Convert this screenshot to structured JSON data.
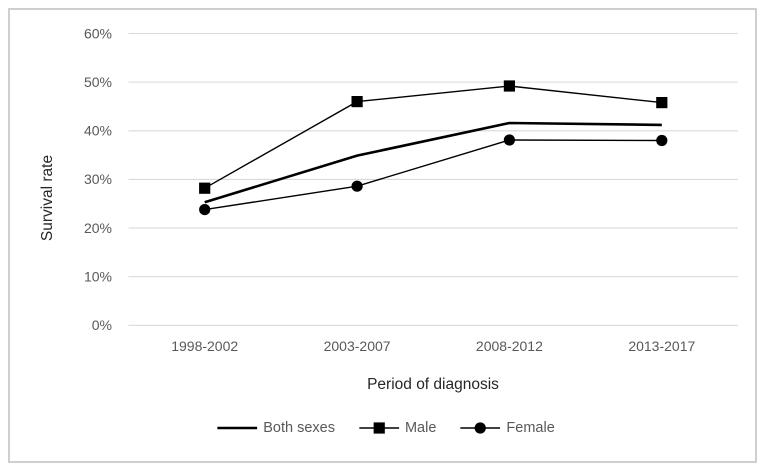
{
  "figure": {
    "background": "#ffffff",
    "border_color": "#cfcfcf"
  },
  "colors": {
    "gridline": "#d9d9d9",
    "tick_label": "#595959",
    "axis_title": "#262626",
    "legend_text": "#595959",
    "series": "#000000"
  },
  "chart_data": {
    "type": "line",
    "title": "",
    "xlabel": "Period of diagnosis",
    "ylabel": "Survival rate",
    "categories": [
      "1998-2002",
      "2003-2007",
      "2008-2012",
      "2013-2017"
    ],
    "series": [
      {
        "name": "Both sexes",
        "values": [
          25.3,
          34.9,
          41.6,
          41.2
        ],
        "marker": "none",
        "line_width": 2.6,
        "color": "#000000"
      },
      {
        "name": "Male",
        "values": [
          28.2,
          46.0,
          49.2,
          45.8
        ],
        "marker": "square",
        "line_width": 1.4,
        "color": "#000000"
      },
      {
        "name": "Female",
        "values": [
          23.8,
          28.6,
          38.1,
          38.0
        ],
        "marker": "circle",
        "line_width": 1.4,
        "color": "#000000"
      }
    ],
    "ylim": [
      0,
      60
    ],
    "ytick_step": 10,
    "yticks": [
      "0%",
      "10%",
      "20%",
      "30%",
      "40%",
      "50%",
      "60%"
    ],
    "grid": "horizontal",
    "legend_position": "bottom-center"
  }
}
